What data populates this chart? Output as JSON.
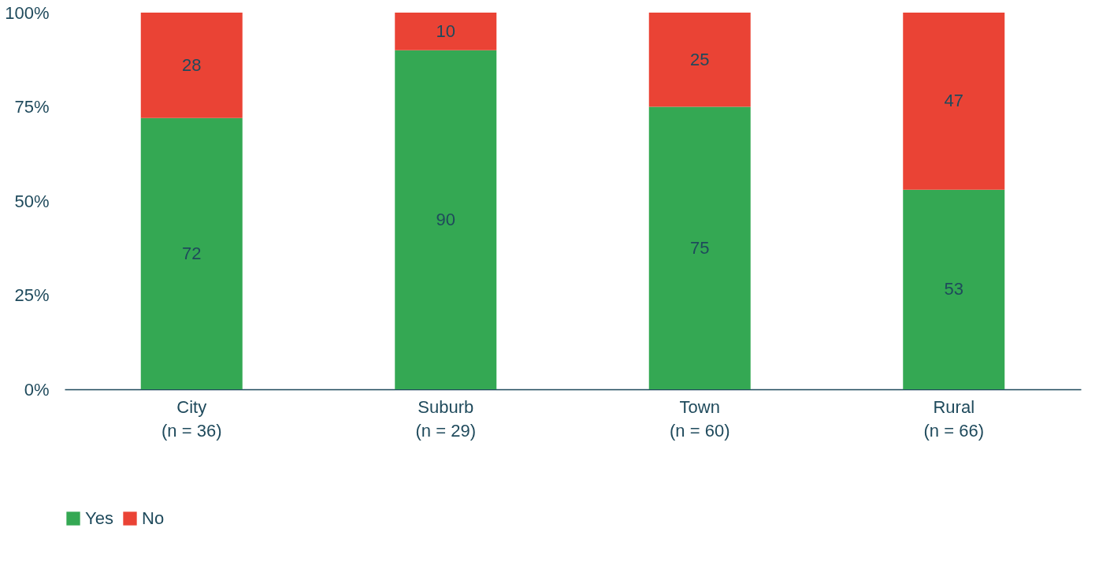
{
  "chart_data": {
    "type": "bar",
    "stacked": true,
    "categories": [
      "City\n(n = 36)",
      "Suburb\n(n = 29)",
      "Town\n(n = 60)",
      "Rural\n(n = 66)"
    ],
    "series": [
      {
        "name": "Yes",
        "color": "#34a853",
        "values": [
          72,
          90,
          75,
          53
        ]
      },
      {
        "name": "No",
        "color": "#ea4335",
        "values": [
          28,
          10,
          25,
          47
        ]
      }
    ],
    "ylim": [
      0,
      100
    ],
    "yticks": [
      {
        "value": 0,
        "label": "0%"
      },
      {
        "value": 25,
        "label": "25%"
      },
      {
        "value": 50,
        "label": "50%"
      },
      {
        "value": 75,
        "label": "75%"
      },
      {
        "value": 100,
        "label": "100%"
      }
    ],
    "data_labels": true,
    "legend": "bottom",
    "grid": false
  }
}
